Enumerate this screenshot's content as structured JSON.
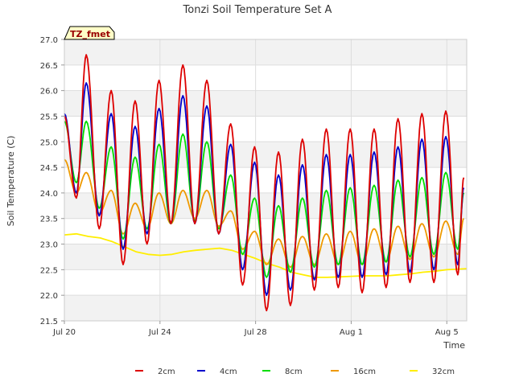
{
  "chart_data": {
    "type": "line",
    "title": "Tonzi Soil Temperature Set A",
    "badge": "TZ_fmet",
    "xlabel": "Time",
    "ylabel": "Soil Temperature (C)",
    "xlim": [
      "2023-07-20",
      "2023-08-05T20:00"
    ],
    "ylim": [
      21.5,
      27.0
    ],
    "x_ticks": [
      {
        "date": "2023-07-20",
        "label": "Jul 20"
      },
      {
        "date": "2023-07-24",
        "label": "Jul 24"
      },
      {
        "date": "2023-07-28",
        "label": "Jul 28"
      },
      {
        "date": "2023-08-01",
        "label": "Aug 1"
      },
      {
        "date": "2023-08-05",
        "label": "Aug 5"
      }
    ],
    "y_ticks": [
      "21.5",
      "22.0",
      "22.5",
      "23.0",
      "23.5",
      "24.0",
      "24.5",
      "25.0",
      "25.5",
      "26.0",
      "26.5",
      "27.0"
    ],
    "grid": true,
    "background_bands": true,
    "legend_position": "bottom",
    "daily_max_times": [
      "2023-07-20",
      "2023-07-20T22:00",
      "2023-07-21T23:00",
      "2023-07-22T23:00",
      "2023-07-23T23:00",
      "2023-07-24T23:00",
      "2023-07-25T23:00",
      "2023-07-26T23:00",
      "2023-07-27T23:00",
      "2023-07-28T23:00",
      "2023-07-29T23:00",
      "2023-07-30T23:00",
      "2023-07-31T23:00",
      "2023-08-01T23:00",
      "2023-08-02T23:00",
      "2023-08-03T23:00",
      "2023-08-04T23:00",
      "2023-08-05T17:00"
    ],
    "daily_min_times": [
      "2023-07-20T12:00",
      "2023-07-21T11:00",
      "2023-07-22T11:00",
      "2023-07-23T11:00",
      "2023-07-24T11:00",
      "2023-07-25T11:00",
      "2023-07-26T11:00",
      "2023-07-27T11:00",
      "2023-07-28T11:00",
      "2023-07-29T11:00",
      "2023-07-30T11:00",
      "2023-07-31T11:00",
      "2023-08-01T11:00",
      "2023-08-02T11:00",
      "2023-08-03T11:00",
      "2023-08-04T11:00",
      "2023-08-05T11:00"
    ],
    "series": [
      {
        "name": "2cm",
        "color": "#dd0000",
        "daily_max": [
          25.5,
          26.7,
          26.0,
          25.8,
          26.2,
          26.5,
          26.2,
          25.35,
          24.9,
          24.8,
          25.05,
          25.25,
          25.25,
          25.25,
          25.45,
          25.55,
          25.6,
          24.3
        ],
        "daily_min": [
          23.9,
          23.3,
          22.6,
          23.0,
          23.4,
          23.4,
          23.2,
          22.2,
          21.7,
          21.8,
          22.1,
          22.15,
          22.05,
          22.15,
          22.25,
          22.25,
          22.4
        ]
      },
      {
        "name": "4cm",
        "color": "#0000cc",
        "daily_max": [
          25.55,
          26.15,
          25.55,
          25.3,
          25.65,
          25.9,
          25.7,
          24.95,
          24.6,
          24.35,
          24.55,
          24.75,
          24.75,
          24.8,
          24.9,
          25.05,
          25.1,
          24.1
        ],
        "daily_min": [
          24.0,
          23.55,
          22.9,
          23.2,
          23.4,
          23.4,
          23.2,
          22.5,
          22.0,
          22.1,
          22.3,
          22.35,
          22.35,
          22.4,
          22.45,
          22.5,
          22.6
        ]
      },
      {
        "name": "8cm",
        "color": "#00dd00",
        "daily_max": [
          25.4,
          25.4,
          24.9,
          24.7,
          24.95,
          25.15,
          25.0,
          24.35,
          23.9,
          23.75,
          23.9,
          24.05,
          24.1,
          24.15,
          24.25,
          24.3,
          24.4,
          24.0
        ],
        "daily_min": [
          24.2,
          23.7,
          23.1,
          23.3,
          23.4,
          23.45,
          23.3,
          22.8,
          22.35,
          22.45,
          22.55,
          22.6,
          22.6,
          22.65,
          22.75,
          22.8,
          22.9
        ]
      },
      {
        "name": "16cm",
        "color": "#ee9900",
        "daily_max": [
          24.65,
          24.4,
          24.05,
          23.8,
          24.0,
          24.05,
          24.05,
          23.65,
          23.25,
          23.1,
          23.15,
          23.2,
          23.25,
          23.3,
          23.35,
          23.4,
          23.45,
          23.5
        ],
        "daily_min": [
          24.0,
          23.6,
          23.2,
          23.3,
          23.4,
          23.5,
          23.35,
          22.9,
          22.6,
          22.55,
          22.6,
          22.6,
          22.6,
          22.65,
          22.7,
          22.75,
          22.8
        ]
      },
      {
        "name": "32cm",
        "color": "#ffee00",
        "values": [
          [
            "2023-07-20",
            23.18
          ],
          [
            "2023-07-20T12:00",
            23.2
          ],
          [
            "2023-07-21",
            23.15
          ],
          [
            "2023-07-21T12:00",
            23.12
          ],
          [
            "2023-07-22",
            23.05
          ],
          [
            "2023-07-22T12:00",
            22.95
          ],
          [
            "2023-07-23",
            22.85
          ],
          [
            "2023-07-23T12:00",
            22.8
          ],
          [
            "2023-07-24",
            22.78
          ],
          [
            "2023-07-24T12:00",
            22.8
          ],
          [
            "2023-07-25",
            22.85
          ],
          [
            "2023-07-25T12:00",
            22.88
          ],
          [
            "2023-07-26",
            22.9
          ],
          [
            "2023-07-26T12:00",
            22.92
          ],
          [
            "2023-07-27",
            22.88
          ],
          [
            "2023-07-27T12:00",
            22.8
          ],
          [
            "2023-07-28",
            22.72
          ],
          [
            "2023-07-28T12:00",
            22.62
          ],
          [
            "2023-07-29",
            22.55
          ],
          [
            "2023-07-29T12:00",
            22.45
          ],
          [
            "2023-07-30",
            22.4
          ],
          [
            "2023-07-30T12:00",
            22.35
          ],
          [
            "2023-07-31",
            22.35
          ],
          [
            "2023-07-31T12:00",
            22.36
          ],
          [
            "2023-08-01",
            22.37
          ],
          [
            "2023-08-01T12:00",
            22.38
          ],
          [
            "2023-08-02",
            22.38
          ],
          [
            "2023-08-02T12:00",
            22.38
          ],
          [
            "2023-08-03",
            22.4
          ],
          [
            "2023-08-03T12:00",
            22.42
          ],
          [
            "2023-08-04",
            22.45
          ],
          [
            "2023-08-04T12:00",
            22.47
          ],
          [
            "2023-08-05",
            22.5
          ],
          [
            "2023-08-05T20:00",
            22.52
          ]
        ]
      }
    ]
  }
}
